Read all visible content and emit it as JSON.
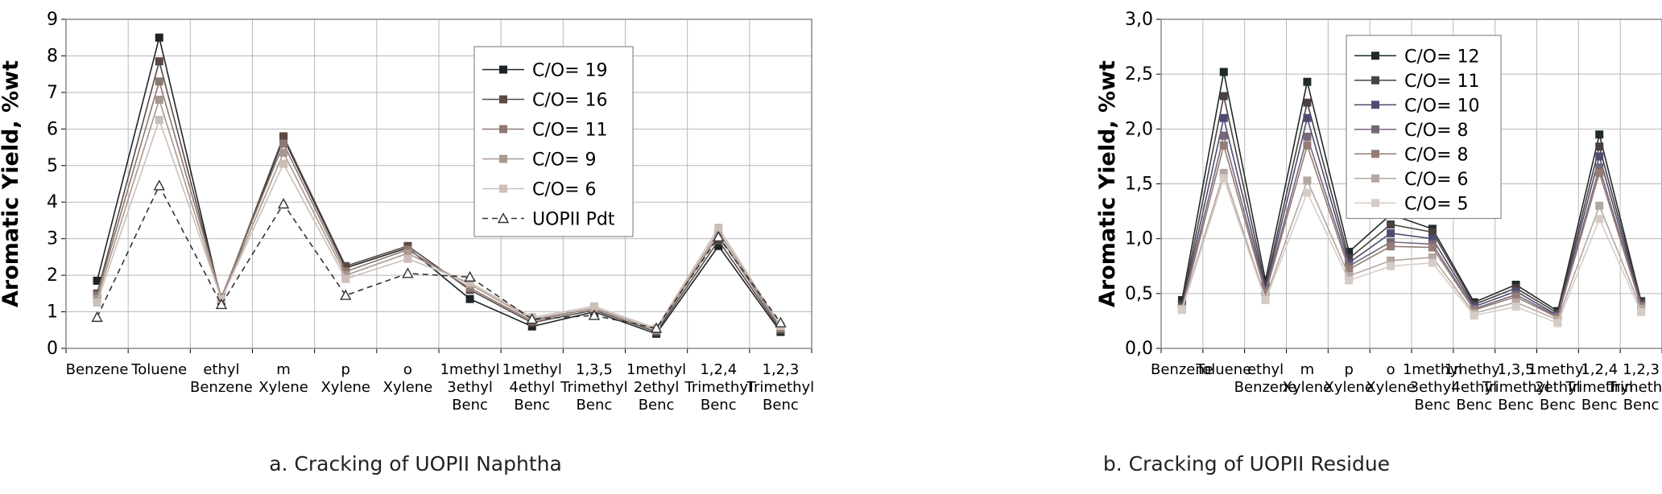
{
  "chart_data": [
    {
      "type": "line",
      "caption": "a. Cracking of UOPII Naphtha",
      "ylabel": "Aromatic Yield, %wt",
      "ylim": [
        0,
        9
      ],
      "yticks": [
        "0",
        "1",
        "2",
        "3",
        "4",
        "5",
        "6",
        "7",
        "8",
        "9"
      ],
      "grid": true,
      "legend_position": "top-right",
      "categories": [
        [
          "Benzene"
        ],
        [
          "Toluene"
        ],
        [
          "ethyl",
          "Benzene"
        ],
        [
          "m",
          "Xylene"
        ],
        [
          "p",
          "Xylene"
        ],
        [
          "o",
          "Xylene"
        ],
        [
          "1methyl",
          "3ethyl",
          "Benc"
        ],
        [
          "1methyl",
          "4ethyl",
          "Benc"
        ],
        [
          "1,3,5",
          "Trimethyl",
          "Benc"
        ],
        [
          "1methyl",
          "2ethyl",
          "Benc"
        ],
        [
          "1,2,4",
          "Trimethyl",
          "Benc"
        ],
        [
          "1,2,3",
          "Trimethyl",
          "Benc"
        ]
      ],
      "series": [
        {
          "name": "C/O= 19",
          "color": "#1c2428",
          "marker": "square",
          "dashed": false,
          "values": [
            1.85,
            8.5,
            1.3,
            5.75,
            2.2,
            2.75,
            1.35,
            0.6,
            1.0,
            0.4,
            2.8,
            0.45
          ]
        },
        {
          "name": "C/O= 16",
          "color": "#5a4a44",
          "marker": "square",
          "dashed": false,
          "values": [
            1.5,
            7.85,
            1.35,
            5.8,
            2.25,
            2.8,
            1.6,
            0.7,
            1.05,
            0.45,
            2.95,
            0.5
          ]
        },
        {
          "name": "C/O= 11",
          "color": "#8c7870",
          "marker": "square",
          "dashed": false,
          "values": [
            1.45,
            7.3,
            1.4,
            5.6,
            2.1,
            2.7,
            1.65,
            0.75,
            1.1,
            0.5,
            3.1,
            0.55
          ]
        },
        {
          "name": "C/O= 9",
          "color": "#a89890",
          "marker": "square",
          "dashed": false,
          "values": [
            1.35,
            6.8,
            1.35,
            5.35,
            2.0,
            2.6,
            1.75,
            0.8,
            1.1,
            0.5,
            3.2,
            0.6
          ]
        },
        {
          "name": "C/O= 6",
          "color": "#cbbfb8",
          "marker": "square",
          "dashed": false,
          "values": [
            1.25,
            6.25,
            1.35,
            5.05,
            1.9,
            2.45,
            1.8,
            0.85,
            1.15,
            0.55,
            3.3,
            0.62
          ]
        },
        {
          "name": "UOPII Pdt",
          "color": "#333333",
          "marker": "triangle",
          "dashed": true,
          "values": [
            0.85,
            4.45,
            1.2,
            3.95,
            1.45,
            2.05,
            1.95,
            0.8,
            0.9,
            0.55,
            3.05,
            0.7
          ]
        }
      ]
    },
    {
      "type": "line",
      "caption": "b. Cracking of UOPII Residue",
      "ylabel": "Aromatic Yield, %wt",
      "ylim": [
        0,
        3
      ],
      "yticks": [
        "0,0",
        "0,5",
        "1,0",
        "1,5",
        "2,0",
        "2,5",
        "3,0"
      ],
      "grid": true,
      "legend_position": "top-right",
      "categories": [
        [
          "Benzene"
        ],
        [
          "Toluene"
        ],
        [
          "ethyl",
          "Benzene"
        ],
        [
          "m",
          "Xylene"
        ],
        [
          "p",
          "Xylene"
        ],
        [
          "o",
          "Xylene"
        ],
        [
          "1methyl",
          "3ethyl",
          "Benc"
        ],
        [
          "1methyl",
          "4ethyl",
          "Benc"
        ],
        [
          "1,3,5",
          "Trimethyl",
          "Benc"
        ],
        [
          "1methyl",
          "2ethyl",
          "Benc"
        ],
        [
          "1,2,4",
          "Trimethyl",
          "Benc"
        ],
        [
          "1,2,3",
          "Trimethyl",
          "Benc"
        ]
      ],
      "series": [
        {
          "name": "C/O= 12",
          "color": "#1f2a2a",
          "marker": "square",
          "dashed": false,
          "values": [
            0.44,
            2.52,
            0.62,
            2.43,
            0.88,
            1.22,
            1.09,
            0.42,
            0.58,
            0.34,
            1.95,
            0.43
          ]
        },
        {
          "name": "C/O= 11",
          "color": "#4a403c",
          "marker": "square",
          "dashed": false,
          "values": [
            0.4,
            2.3,
            0.57,
            2.24,
            0.82,
            1.13,
            1.06,
            0.4,
            0.55,
            0.32,
            1.84,
            0.42
          ]
        },
        {
          "name": "C/O= 10",
          "color": "#4e4c72",
          "marker": "square",
          "dashed": false,
          "values": [
            0.38,
            2.1,
            0.54,
            2.1,
            0.78,
            1.05,
            1.0,
            0.38,
            0.52,
            0.3,
            1.75,
            0.4
          ]
        },
        {
          "name": "C/O= 8",
          "color": "#76687a",
          "marker": "square",
          "dashed": false,
          "values": [
            0.37,
            1.94,
            0.52,
            1.93,
            0.75,
            0.97,
            0.95,
            0.36,
            0.49,
            0.29,
            1.65,
            0.39
          ]
        },
        {
          "name": "C/O= 8",
          "color": "#957c74",
          "marker": "square",
          "dashed": false,
          "values": [
            0.36,
            1.85,
            0.5,
            1.85,
            0.72,
            0.93,
            0.92,
            0.35,
            0.47,
            0.28,
            1.6,
            0.38
          ]
        },
        {
          "name": "C/O= 6",
          "color": "#b4a6a0",
          "marker": "square",
          "dashed": false,
          "values": [
            0.36,
            1.6,
            0.46,
            1.53,
            0.66,
            0.8,
            0.83,
            0.32,
            0.42,
            0.26,
            1.3,
            0.36
          ]
        },
        {
          "name": "C/O= 5",
          "color": "#d6ccc6",
          "marker": "square",
          "dashed": false,
          "values": [
            0.35,
            1.55,
            0.44,
            1.42,
            0.62,
            0.75,
            0.78,
            0.3,
            0.38,
            0.23,
            1.18,
            0.33
          ]
        }
      ]
    }
  ]
}
